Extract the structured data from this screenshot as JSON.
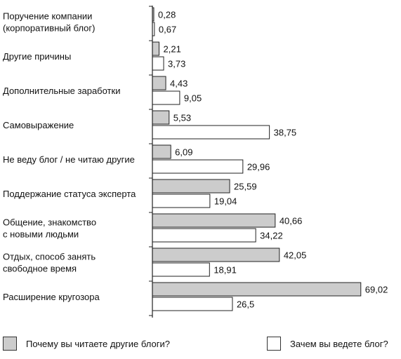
{
  "chart_data": {
    "type": "bar",
    "orientation": "horizontal",
    "categories": [
      [
        "Поручение компании",
        "(корпоративный блог)"
      ],
      [
        "Другие причины"
      ],
      [
        "Дополнительные заработки"
      ],
      [
        "Самовыражение"
      ],
      [
        "Не веду блог / не читаю другие"
      ],
      [
        "Поддержание статуса эксперта"
      ],
      [
        "Общение, знакомство",
        "с новыми людьми"
      ],
      [
        "Отдых, способ занять",
        "свободное время"
      ],
      [
        "Расширение кругозора"
      ]
    ],
    "series": [
      {
        "name": "Почему вы читаете другие блоги?",
        "color": "#cccccc",
        "values": [
          0.28,
          2.21,
          4.43,
          5.53,
          6.09,
          25.59,
          40.66,
          42.05,
          69.02
        ],
        "value_labels": [
          "0,28",
          "2,21",
          "4,43",
          "5,53",
          "6,09",
          "25,59",
          "40,66",
          "42,05",
          "69,02"
        ]
      },
      {
        "name": "Зачем вы ведете блог?",
        "color": "#ffffff",
        "values": [
          0.67,
          3.73,
          9.05,
          38.75,
          29.96,
          19.04,
          34.22,
          18.91,
          26.5
        ],
        "value_labels": [
          "0,67",
          "3,73",
          "9,05",
          "38,75",
          "29,96",
          "19,04",
          "34,22",
          "18,91",
          "26,5"
        ]
      }
    ],
    "xlim": [
      0,
      70
    ],
    "legend_position": "bottom",
    "grid": false,
    "title": "",
    "xlabel": "",
    "ylabel": ""
  },
  "legend": {
    "items": [
      {
        "label": "Почему вы читаете другие блоги?",
        "color": "#cccccc"
      },
      {
        "label": "Зачем вы ведете блог?",
        "color": "#ffffff"
      }
    ]
  }
}
